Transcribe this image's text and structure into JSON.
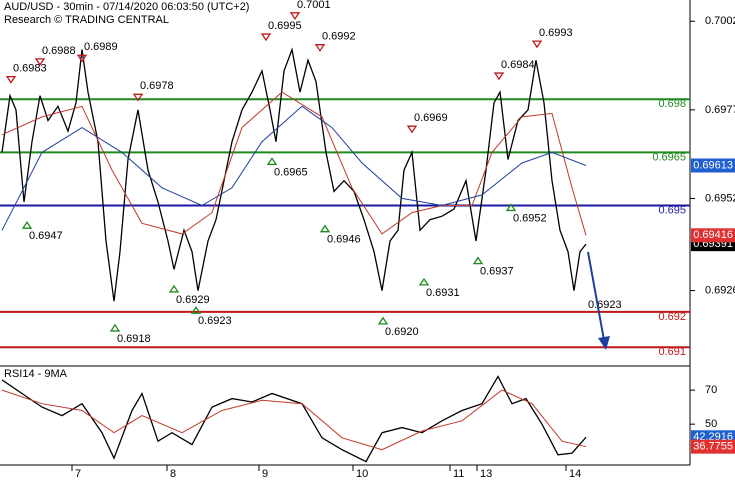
{
  "chart_data": [
    {
      "type": "line",
      "title": "AUD/USD - 30min - 07/14/2020 06:03:50 (UTC+2)",
      "subtitle": "Research © TRADING CENTRAL",
      "xlim": [
        0,
        344
      ],
      "xticks": [
        {
          "value": 35,
          "label": "7"
        },
        {
          "value": 82.5,
          "label": "8"
        },
        {
          "value": 128.5,
          "label": "9"
        },
        {
          "value": 175.5,
          "label": "10"
        },
        {
          "value": 224,
          "label": "11"
        },
        {
          "value": 237.5,
          "label": "13"
        },
        {
          "value": 282,
          "label": "14"
        }
      ],
      "ylim": [
        0.6905,
        0.7008
      ],
      "yticks": [
        0.7002,
        0.6977,
        0.6952,
        0.6926
      ],
      "series": [
        {
          "color": "#000000",
          "badge": "#000000",
          "x": [
            0,
            4,
            7,
            11,
            15,
            19,
            23,
            28,
            33,
            37,
            40,
            43,
            48,
            52,
            56,
            59,
            63,
            68,
            73,
            78,
            83,
            86,
            91,
            95,
            98,
            103,
            107,
            111,
            115,
            120,
            125,
            130,
            134,
            137,
            141,
            145,
            149,
            153,
            157,
            162,
            166,
            171,
            176,
            181,
            186,
            190,
            194,
            198,
            201,
            205,
            209,
            214,
            220,
            226,
            232,
            237,
            242,
            246,
            249,
            253,
            258,
            263,
            267,
            271,
            275,
            279,
            283,
            286,
            289,
            292
          ],
          "values": [
            0.6965,
            0.6981,
            0.6977,
            0.6951,
            0.6968,
            0.6981,
            0.6974,
            0.6978,
            0.6971,
            0.6979,
            0.6994,
            0.6982,
            0.6968,
            0.694,
            0.6923,
            0.6937,
            0.6963,
            0.6977,
            0.696,
            0.6951,
            0.694,
            0.6932,
            0.6943,
            0.6937,
            0.6926,
            0.694,
            0.6946,
            0.6957,
            0.6968,
            0.6977,
            0.6982,
            0.6988,
            0.6977,
            0.6968,
            0.6988,
            0.6994,
            0.6982,
            0.6991,
            0.6985,
            0.6965,
            0.6954,
            0.6957,
            0.6954,
            0.6946,
            0.6937,
            0.6926,
            0.694,
            0.6943,
            0.696,
            0.6965,
            0.6943,
            0.6946,
            0.6947,
            0.6949,
            0.6957,
            0.694,
            0.696,
            0.6979,
            0.6982,
            0.6963,
            0.6974,
            0.6977,
            0.6991,
            0.6979,
            0.6957,
            0.6943,
            0.6937,
            0.6926,
            0.6937,
            0.69391
          ]
        },
        {
          "color": "#c0392b",
          "badge": "#e03030",
          "x": [
            0,
            20,
            40,
            55,
            70,
            90,
            105,
            120,
            140,
            160,
            175,
            190,
            205,
            220,
            235,
            245,
            260,
            275,
            285,
            292
          ],
          "values": [
            0.697,
            0.6975,
            0.6978,
            0.696,
            0.6945,
            0.6942,
            0.6948,
            0.6972,
            0.6982,
            0.6975,
            0.6955,
            0.6942,
            0.6948,
            0.695,
            0.695,
            0.6965,
            0.6975,
            0.6976,
            0.6955,
            0.69416
          ]
        },
        {
          "color": "#1f3fa0",
          "badge": "#1f5fd0",
          "x": [
            0,
            20,
            40,
            60,
            80,
            100,
            115,
            130,
            150,
            165,
            180,
            200,
            220,
            240,
            260,
            275,
            292
          ],
          "values": [
            0.6943,
            0.6965,
            0.6972,
            0.6965,
            0.6955,
            0.695,
            0.6955,
            0.6968,
            0.6978,
            0.6972,
            0.6962,
            0.6952,
            0.695,
            0.6953,
            0.6962,
            0.6965,
            0.69613
          ]
        }
      ],
      "levels": [
        {
          "value": 0.698,
          "color": "#1e8a1e"
        },
        {
          "value": 0.6965,
          "color": "#1e8a1e"
        },
        {
          "value": 0.695,
          "color": "#1a1aa0"
        },
        {
          "value": 0.692,
          "color": "#c01818"
        },
        {
          "value": 0.691,
          "color": "#c01818"
        }
      ],
      "annotations": [
        {
          "x": 4.5,
          "value": 0.6983,
          "label": "0.6983",
          "marker": "down"
        },
        {
          "x": 19,
          "value": 0.6988,
          "label": "0.6988",
          "marker": "down"
        },
        {
          "x": 40,
          "value": 0.6989,
          "label": "0.6989",
          "marker": "down"
        },
        {
          "x": 68,
          "value": 0.6978,
          "label": "0.6978",
          "marker": "down"
        },
        {
          "x": 132,
          "value": 0.6995,
          "label": "0.6995",
          "marker": "down"
        },
        {
          "x": 146.5,
          "value": 0.7001,
          "label": "0.7001",
          "marker": "down"
        },
        {
          "x": 159,
          "value": 0.6992,
          "label": "0.6992",
          "marker": "down"
        },
        {
          "x": 205,
          "value": 0.6969,
          "label": "0.6969",
          "marker": "down"
        },
        {
          "x": 248.5,
          "value": 0.6984,
          "label": "0.6984",
          "marker": "down"
        },
        {
          "x": 267.5,
          "value": 0.6993,
          "label": "0.6993",
          "marker": "down"
        },
        {
          "x": 12.5,
          "value": 0.6947,
          "label": "0.6947",
          "marker": "up"
        },
        {
          "x": 56.5,
          "value": 0.6918,
          "label": "0.6918",
          "marker": "up"
        },
        {
          "x": 86,
          "value": 0.6929,
          "label": "0.6929",
          "marker": "up"
        },
        {
          "x": 97,
          "value": 0.6923,
          "label": "0.6923",
          "marker": "up"
        },
        {
          "x": 135,
          "value": 0.6965,
          "label": "0.6965",
          "marker": "up"
        },
        {
          "x": 161.5,
          "value": 0.6946,
          "label": "0.6946",
          "marker": "up"
        },
        {
          "x": 190.5,
          "value": 0.692,
          "label": "0.6920",
          "marker": "up"
        },
        {
          "x": 211,
          "value": 0.6931,
          "label": "0.6931",
          "marker": "up"
        },
        {
          "x": 238,
          "value": 0.6937,
          "label": "0.6937",
          "marker": "up"
        },
        {
          "x": 254.5,
          "value": 0.6952,
          "label": "0.6952",
          "marker": "up"
        },
        {
          "x": 292,
          "value": 0.6923,
          "label": "0.6923",
          "marker": "none"
        }
      ]
    },
    {
      "type": "line",
      "title": "RSI14 - 9MA",
      "xlim": [
        0,
        344
      ],
      "ylim": [
        26,
        83
      ],
      "yticks": [
        70,
        50
      ],
      "series": [
        {
          "color": "#000000",
          "badge": "#1f5fd0",
          "x": [
            0,
            10,
            20,
            30,
            40,
            50,
            56,
            65,
            70,
            78,
            85,
            95,
            105,
            115,
            125,
            135,
            150,
            160,
            170,
            182,
            190,
            200,
            210,
            220,
            230,
            240,
            248,
            255,
            262,
            270,
            278,
            285,
            292
          ],
          "values": [
            76,
            68,
            60,
            55,
            62,
            45,
            30,
            58,
            68,
            40,
            45,
            38,
            60,
            65,
            63,
            68,
            62,
            42,
            35,
            28,
            45,
            48,
            45,
            52,
            58,
            62,
            78,
            62,
            65,
            50,
            32,
            33,
            42.2916
          ]
        },
        {
          "color": "#c0392b",
          "badge": "#e03030",
          "x": [
            0,
            20,
            40,
            56,
            70,
            90,
            110,
            130,
            150,
            170,
            190,
            210,
            230,
            250,
            265,
            280,
            292
          ],
          "values": [
            70,
            62,
            58,
            45,
            55,
            45,
            58,
            64,
            62,
            42,
            35,
            46,
            52,
            70,
            62,
            40,
            36.7755
          ]
        }
      ]
    }
  ]
}
